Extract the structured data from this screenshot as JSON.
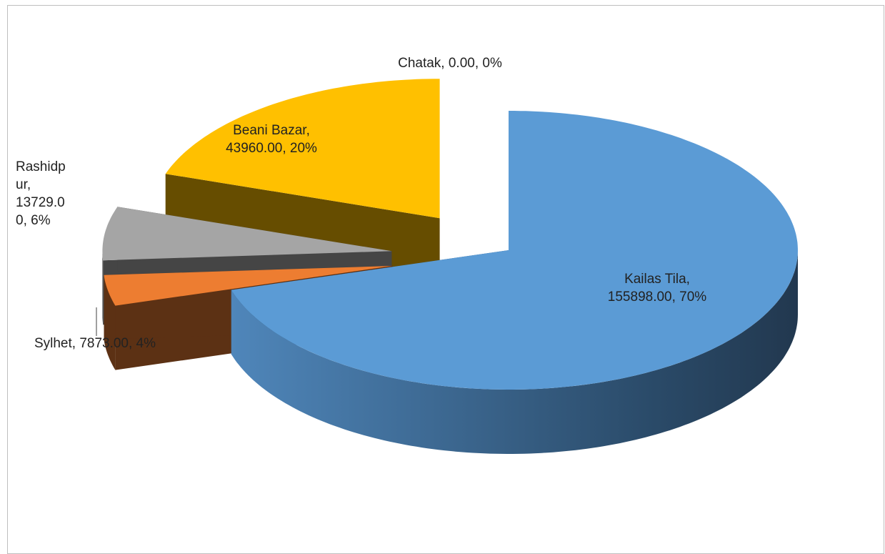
{
  "chart_data": {
    "type": "pie3d",
    "categories": [
      "Kailas Tila",
      "Sylhet",
      "Rashidpur",
      "Beani Bazar",
      "Chatak"
    ],
    "values": [
      155898.0,
      7873.0,
      13729.0,
      43960.0,
      0.0
    ],
    "value_labels": [
      "Kailas Tila, 155898.00, 70%",
      "Sylhet, 7873.00, 4%",
      "Rashidpur, 13729.00, 6%",
      "Beani Bazar, 43960.00, 20%",
      "Chatak, 0.00, 0%"
    ],
    "colors": [
      "#5b9bd5",
      "#ed7d31",
      "#a5a5a5",
      "#ffc000",
      "#4472c4"
    ],
    "side_colors": [
      "#2c4f70",
      "#5c3114",
      "#454545",
      "#664d00",
      "#203864"
    ]
  }
}
